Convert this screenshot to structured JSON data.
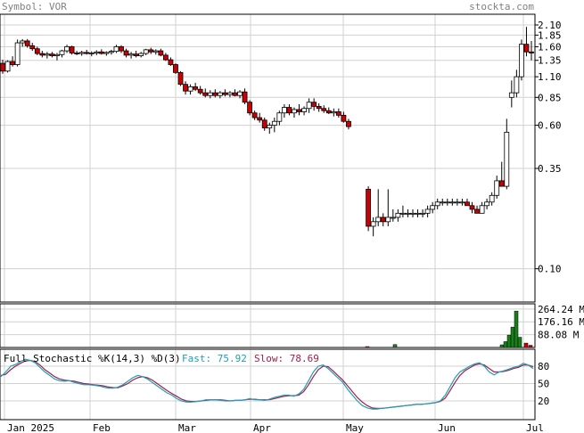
{
  "header": {
    "symbol_label": "Symbol: VOR",
    "site": "stockta.com"
  },
  "colors": {
    "up": "#ffffff",
    "down": "#cc0000",
    "volume_up": "#1a7f1a",
    "volume_down": "#cc0000",
    "fast": "#1f9fb8",
    "slow": "#a0204a",
    "grid": "#d0d0d0"
  },
  "stoch_labels": {
    "title": "Full Stochastic %K(14,3) %D(3)",
    "fast_label": "Fast: 75.92",
    "slow_label": "Slow: 78.69"
  },
  "chart_data": [
    {
      "type": "candlestick",
      "title": "",
      "y_scale": "log",
      "y_ticks": [
        "2.10",
        "1.85",
        "1.60",
        "1.35",
        "1.10",
        "0.85",
        "0.60",
        "0.35",
        "0.10"
      ],
      "x_ticks": [
        "Jan 2025",
        "Feb",
        "Mar",
        "Apr",
        "May",
        "Jun",
        "Jul"
      ],
      "candles": [
        {
          "o": 1.3,
          "h": 1.36,
          "l": 1.14,
          "c": 1.18
        },
        {
          "o": 1.18,
          "h": 1.35,
          "l": 1.16,
          "c": 1.33
        },
        {
          "o": 1.33,
          "h": 1.42,
          "l": 1.25,
          "c": 1.28
        },
        {
          "o": 1.28,
          "h": 1.75,
          "l": 1.25,
          "c": 1.68
        },
        {
          "o": 1.68,
          "h": 1.76,
          "l": 1.6,
          "c": 1.72
        },
        {
          "o": 1.72,
          "h": 1.76,
          "l": 1.58,
          "c": 1.62
        },
        {
          "o": 1.62,
          "h": 1.68,
          "l": 1.52,
          "c": 1.56
        },
        {
          "o": 1.56,
          "h": 1.6,
          "l": 1.44,
          "c": 1.47
        },
        {
          "o": 1.47,
          "h": 1.52,
          "l": 1.4,
          "c": 1.44
        },
        {
          "o": 1.44,
          "h": 1.5,
          "l": 1.38,
          "c": 1.46
        },
        {
          "o": 1.46,
          "h": 1.5,
          "l": 1.4,
          "c": 1.43
        },
        {
          "o": 1.43,
          "h": 1.48,
          "l": 1.35,
          "c": 1.45
        },
        {
          "o": 1.45,
          "h": 1.54,
          "l": 1.4,
          "c": 1.52
        },
        {
          "o": 1.52,
          "h": 1.64,
          "l": 1.48,
          "c": 1.6
        },
        {
          "o": 1.6,
          "h": 1.62,
          "l": 1.45,
          "c": 1.48
        },
        {
          "o": 1.48,
          "h": 1.52,
          "l": 1.44,
          "c": 1.47
        },
        {
          "o": 1.47,
          "h": 1.52,
          "l": 1.43,
          "c": 1.49
        },
        {
          "o": 1.49,
          "h": 1.54,
          "l": 1.45,
          "c": 1.47
        },
        {
          "o": 1.47,
          "h": 1.51,
          "l": 1.42,
          "c": 1.48
        },
        {
          "o": 1.48,
          "h": 1.53,
          "l": 1.44,
          "c": 1.5
        },
        {
          "o": 1.5,
          "h": 1.55,
          "l": 1.45,
          "c": 1.47
        },
        {
          "o": 1.47,
          "h": 1.51,
          "l": 1.43,
          "c": 1.49
        },
        {
          "o": 1.49,
          "h": 1.54,
          "l": 1.45,
          "c": 1.51
        },
        {
          "o": 1.51,
          "h": 1.64,
          "l": 1.48,
          "c": 1.6
        },
        {
          "o": 1.6,
          "h": 1.63,
          "l": 1.48,
          "c": 1.52
        },
        {
          "o": 1.52,
          "h": 1.56,
          "l": 1.4,
          "c": 1.44
        },
        {
          "o": 1.44,
          "h": 1.5,
          "l": 1.38,
          "c": 1.46
        },
        {
          "o": 1.46,
          "h": 1.52,
          "l": 1.4,
          "c": 1.43
        },
        {
          "o": 1.43,
          "h": 1.5,
          "l": 1.4,
          "c": 1.47
        },
        {
          "o": 1.47,
          "h": 1.56,
          "l": 1.44,
          "c": 1.54
        },
        {
          "o": 1.54,
          "h": 1.58,
          "l": 1.46,
          "c": 1.5
        },
        {
          "o": 1.5,
          "h": 1.55,
          "l": 1.45,
          "c": 1.52
        },
        {
          "o": 1.52,
          "h": 1.56,
          "l": 1.42,
          "c": 1.44
        },
        {
          "o": 1.44,
          "h": 1.48,
          "l": 1.34,
          "c": 1.36
        },
        {
          "o": 1.36,
          "h": 1.4,
          "l": 1.26,
          "c": 1.28
        },
        {
          "o": 1.28,
          "h": 1.3,
          "l": 1.14,
          "c": 1.16
        },
        {
          "o": 1.16,
          "h": 1.18,
          "l": 0.98,
          "c": 1.0
        },
        {
          "o": 1.0,
          "h": 1.04,
          "l": 0.88,
          "c": 0.92
        },
        {
          "o": 0.92,
          "h": 1.0,
          "l": 0.88,
          "c": 0.97
        },
        {
          "o": 0.97,
          "h": 1.02,
          "l": 0.92,
          "c": 0.94
        },
        {
          "o": 0.94,
          "h": 0.98,
          "l": 0.88,
          "c": 0.9
        },
        {
          "o": 0.9,
          "h": 0.95,
          "l": 0.85,
          "c": 0.87
        },
        {
          "o": 0.87,
          "h": 0.93,
          "l": 0.84,
          "c": 0.9
        },
        {
          "o": 0.9,
          "h": 0.94,
          "l": 0.85,
          "c": 0.87
        },
        {
          "o": 0.87,
          "h": 0.92,
          "l": 0.84,
          "c": 0.9
        },
        {
          "o": 0.9,
          "h": 0.94,
          "l": 0.86,
          "c": 0.88
        },
        {
          "o": 0.88,
          "h": 0.92,
          "l": 0.85,
          "c": 0.9
        },
        {
          "o": 0.9,
          "h": 0.94,
          "l": 0.86,
          "c": 0.87
        },
        {
          "o": 0.87,
          "h": 0.93,
          "l": 0.84,
          "c": 0.91
        },
        {
          "o": 0.91,
          "h": 0.95,
          "l": 0.78,
          "c": 0.8
        },
        {
          "o": 0.8,
          "h": 0.82,
          "l": 0.68,
          "c": 0.7
        },
        {
          "o": 0.7,
          "h": 0.72,
          "l": 0.64,
          "c": 0.66
        },
        {
          "o": 0.66,
          "h": 0.7,
          "l": 0.62,
          "c": 0.64
        },
        {
          "o": 0.64,
          "h": 0.66,
          "l": 0.56,
          "c": 0.58
        },
        {
          "o": 0.58,
          "h": 0.62,
          "l": 0.54,
          "c": 0.6
        },
        {
          "o": 0.6,
          "h": 0.66,
          "l": 0.55,
          "c": 0.63
        },
        {
          "o": 0.63,
          "h": 0.72,
          "l": 0.6,
          "c": 0.7
        },
        {
          "o": 0.7,
          "h": 0.78,
          "l": 0.66,
          "c": 0.75
        },
        {
          "o": 0.75,
          "h": 0.78,
          "l": 0.68,
          "c": 0.7
        },
        {
          "o": 0.7,
          "h": 0.75,
          "l": 0.66,
          "c": 0.73
        },
        {
          "o": 0.73,
          "h": 0.78,
          "l": 0.68,
          "c": 0.71
        },
        {
          "o": 0.71,
          "h": 0.76,
          "l": 0.68,
          "c": 0.74
        },
        {
          "o": 0.74,
          "h": 0.84,
          "l": 0.7,
          "c": 0.8
        },
        {
          "o": 0.8,
          "h": 0.84,
          "l": 0.72,
          "c": 0.76
        },
        {
          "o": 0.76,
          "h": 0.79,
          "l": 0.71,
          "c": 0.74
        },
        {
          "o": 0.74,
          "h": 0.77,
          "l": 0.7,
          "c": 0.72
        },
        {
          "o": 0.72,
          "h": 0.75,
          "l": 0.69,
          "c": 0.7
        },
        {
          "o": 0.7,
          "h": 0.74,
          "l": 0.67,
          "c": 0.71
        },
        {
          "o": 0.71,
          "h": 0.74,
          "l": 0.66,
          "c": 0.68
        },
        {
          "o": 0.68,
          "h": 0.71,
          "l": 0.62,
          "c": 0.63
        },
        {
          "o": 0.63,
          "h": 0.65,
          "l": 0.57,
          "c": 0.59
        },
        {
          "o": 0.27,
          "h": 0.28,
          "l": 0.16,
          "c": 0.17
        },
        {
          "o": 0.17,
          "h": 0.19,
          "l": 0.15,
          "c": 0.18
        },
        {
          "o": 0.18,
          "h": 0.27,
          "l": 0.17,
          "c": 0.19
        },
        {
          "o": 0.19,
          "h": 0.2,
          "l": 0.17,
          "c": 0.18
        },
        {
          "o": 0.18,
          "h": 0.27,
          "l": 0.17,
          "c": 0.19
        },
        {
          "o": 0.19,
          "h": 0.21,
          "l": 0.18,
          "c": 0.19
        },
        {
          "o": 0.19,
          "h": 0.21,
          "l": 0.18,
          "c": 0.2
        },
        {
          "o": 0.2,
          "h": 0.22,
          "l": 0.19,
          "c": 0.2
        },
        {
          "o": 0.2,
          "h": 0.21,
          "l": 0.19,
          "c": 0.2
        },
        {
          "o": 0.2,
          "h": 0.21,
          "l": 0.19,
          "c": 0.2
        },
        {
          "o": 0.2,
          "h": 0.21,
          "l": 0.19,
          "c": 0.2
        },
        {
          "o": 0.2,
          "h": 0.21,
          "l": 0.19,
          "c": 0.2
        },
        {
          "o": 0.2,
          "h": 0.22,
          "l": 0.19,
          "c": 0.21
        },
        {
          "o": 0.21,
          "h": 0.23,
          "l": 0.2,
          "c": 0.22
        },
        {
          "o": 0.22,
          "h": 0.24,
          "l": 0.21,
          "c": 0.23
        },
        {
          "o": 0.23,
          "h": 0.24,
          "l": 0.22,
          "c": 0.23
        },
        {
          "o": 0.23,
          "h": 0.24,
          "l": 0.22,
          "c": 0.23
        },
        {
          "o": 0.23,
          "h": 0.24,
          "l": 0.22,
          "c": 0.23
        },
        {
          "o": 0.23,
          "h": 0.24,
          "l": 0.22,
          "c": 0.23
        },
        {
          "o": 0.23,
          "h": 0.24,
          "l": 0.22,
          "c": 0.23
        },
        {
          "o": 0.23,
          "h": 0.24,
          "l": 0.22,
          "c": 0.22
        },
        {
          "o": 0.22,
          "h": 0.23,
          "l": 0.2,
          "c": 0.21
        },
        {
          "o": 0.21,
          "h": 0.22,
          "l": 0.2,
          "c": 0.2
        },
        {
          "o": 0.2,
          "h": 0.23,
          "l": 0.2,
          "c": 0.22
        },
        {
          "o": 0.22,
          "h": 0.24,
          "l": 0.21,
          "c": 0.23
        },
        {
          "o": 0.23,
          "h": 0.26,
          "l": 0.22,
          "c": 0.25
        },
        {
          "o": 0.25,
          "h": 0.32,
          "l": 0.24,
          "c": 0.3
        },
        {
          "o": 0.3,
          "h": 0.38,
          "l": 0.28,
          "c": 0.28
        },
        {
          "o": 0.28,
          "h": 0.65,
          "l": 0.27,
          "c": 0.55
        },
        {
          "o": 0.85,
          "h": 1.05,
          "l": 0.75,
          "c": 0.9
        },
        {
          "o": 0.9,
          "h": 1.2,
          "l": 0.85,
          "c": 1.1
        },
        {
          "o": 1.1,
          "h": 1.75,
          "l": 1.05,
          "c": 1.65
        },
        {
          "o": 1.65,
          "h": 2.05,
          "l": 1.42,
          "c": 1.5
        },
        {
          "o": 1.5,
          "h": 1.72,
          "l": 1.35,
          "c": 1.48
        }
      ],
      "volume": {
        "y_ticks": [
          "264.24 M",
          "176.16 M",
          "88.08 M"
        ],
        "spikes": [
          {
            "date": "May 6",
            "value": 6000000,
            "dir": "down"
          },
          {
            "date": "May 21",
            "value": 20000000,
            "dir": "up"
          },
          {
            "date": "Jun 26",
            "value": 18000000,
            "dir": "up"
          },
          {
            "date": "Jun 27",
            "value": 40000000,
            "dir": "up"
          },
          {
            "date": "Jun 30",
            "value": 85000000,
            "dir": "up"
          },
          {
            "date": "Jul 1",
            "value": 140000000,
            "dir": "up"
          },
          {
            "date": "Jul 2",
            "value": 250000000,
            "dir": "up"
          },
          {
            "date": "Jul 3",
            "value": 70000000,
            "dir": "up"
          },
          {
            "date": "Jul 7",
            "value": 30000000,
            "dir": "down"
          },
          {
            "date": "Jul 8",
            "value": 15000000,
            "dir": "down"
          }
        ]
      },
      "stochastic": {
        "y_ticks": [
          "80",
          "50",
          "20"
        ],
        "fast": [
          62,
          70,
          80,
          83,
          88,
          92,
          90,
          86,
          78,
          70,
          64,
          58,
          55,
          54,
          55,
          52,
          50,
          48,
          48,
          47,
          46,
          44,
          42,
          42,
          44,
          48,
          54,
          60,
          64,
          62,
          58,
          52,
          46,
          40,
          34,
          30,
          24,
          20,
          18,
          18,
          19,
          20,
          22,
          22,
          22,
          21,
          20,
          20,
          21,
          21,
          22,
          24,
          22,
          22,
          21,
          23,
          26,
          28,
          30,
          30,
          28,
          32,
          40,
          55,
          70,
          80,
          82,
          76,
          68,
          60,
          52,
          40,
          30,
          20,
          12,
          8,
          6,
          6,
          7,
          8,
          9,
          10,
          11,
          12,
          13,
          14,
          14,
          15,
          16,
          17,
          20,
          30,
          45,
          60,
          70,
          75,
          80,
          84,
          86,
          80,
          70,
          65,
          70,
          72,
          75,
          78,
          80,
          85,
          82,
          76
        ],
        "slow": [
          64,
          66,
          74,
          80,
          85,
          89,
          90,
          88,
          82,
          74,
          68,
          62,
          58,
          56,
          55,
          54,
          52,
          50,
          49,
          48,
          47,
          46,
          44,
          43,
          43,
          46,
          50,
          56,
          60,
          62,
          60,
          56,
          50,
          44,
          38,
          33,
          28,
          23,
          20,
          19,
          19,
          20,
          21,
          22,
          22,
          22,
          21,
          20,
          21,
          21,
          22,
          23,
          23,
          22,
          22,
          22,
          24,
          26,
          28,
          29,
          29,
          30,
          36,
          48,
          62,
          74,
          80,
          79,
          72,
          64,
          56,
          46,
          36,
          26,
          18,
          12,
          8,
          7,
          7,
          8,
          9,
          10,
          11,
          12,
          13,
          14,
          14,
          15,
          16,
          17,
          19,
          25,
          38,
          52,
          64,
          72,
          77,
          82,
          84,
          82,
          76,
          70,
          70,
          71,
          73,
          76,
          78,
          82,
          82,
          79
        ]
      }
    }
  ]
}
